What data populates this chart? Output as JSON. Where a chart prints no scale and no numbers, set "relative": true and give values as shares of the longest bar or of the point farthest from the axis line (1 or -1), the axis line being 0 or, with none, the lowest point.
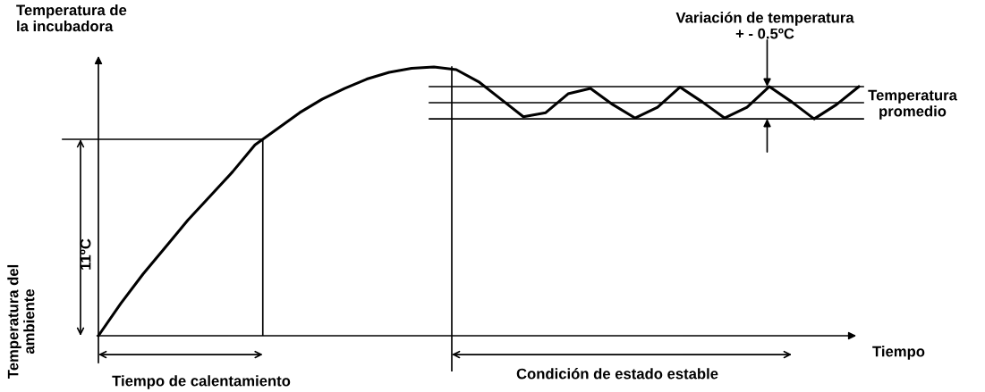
{
  "chart_data": {
    "type": "line",
    "relative": true,
    "marker": "none",
    "line_style": "solid",
    "ylabel": "Temperatura de\nla incubadora",
    "xlabel": "Tiempo",
    "categories": [
      null,
      null,
      null,
      null,
      null,
      null,
      null,
      null,
      null,
      null,
      null,
      null,
      null,
      null,
      null,
      null,
      null,
      null,
      null,
      null,
      null,
      null,
      null,
      null,
      null,
      null,
      null,
      null,
      null,
      null,
      null,
      null,
      null,
      null,
      null
    ],
    "series": [
      {
        "color": "#000000",
        "values": [
          0,
          0.12,
          0.23,
          0.33,
          0.43,
          0.52,
          0.61,
          0.71,
          0.77,
          0.83,
          0.88,
          0.92,
          0.955,
          0.98,
          0.995,
          1,
          0.99,
          0.945,
          0.88,
          0.815,
          0.83,
          0.9,
          0.92,
          0.86,
          0.81,
          0.85,
          0.925,
          0.87,
          0.81,
          0.85,
          0.927,
          0.87,
          0.807,
          0.86,
          0.927
        ]
      }
    ],
    "ref_lines": [
      {
        "axis": "y",
        "value": 0.927,
        "color": "#000000"
      },
      {
        "axis": "y",
        "value": 0.867,
        "color": "#000000"
      },
      {
        "axis": "y",
        "value": 0.807,
        "color": "#000000"
      },
      {
        "axis": "y",
        "value": 0.731,
        "color": "#000000"
      }
    ],
    "annotations": [
      "Temperatura del\nambiente",
      "11ºC",
      "Tiempo de calentamiento",
      "Condición de estado estable",
      "Variación de temperatura\n+ - 0.5ºC",
      "Temperatura\npromedio"
    ]
  }
}
